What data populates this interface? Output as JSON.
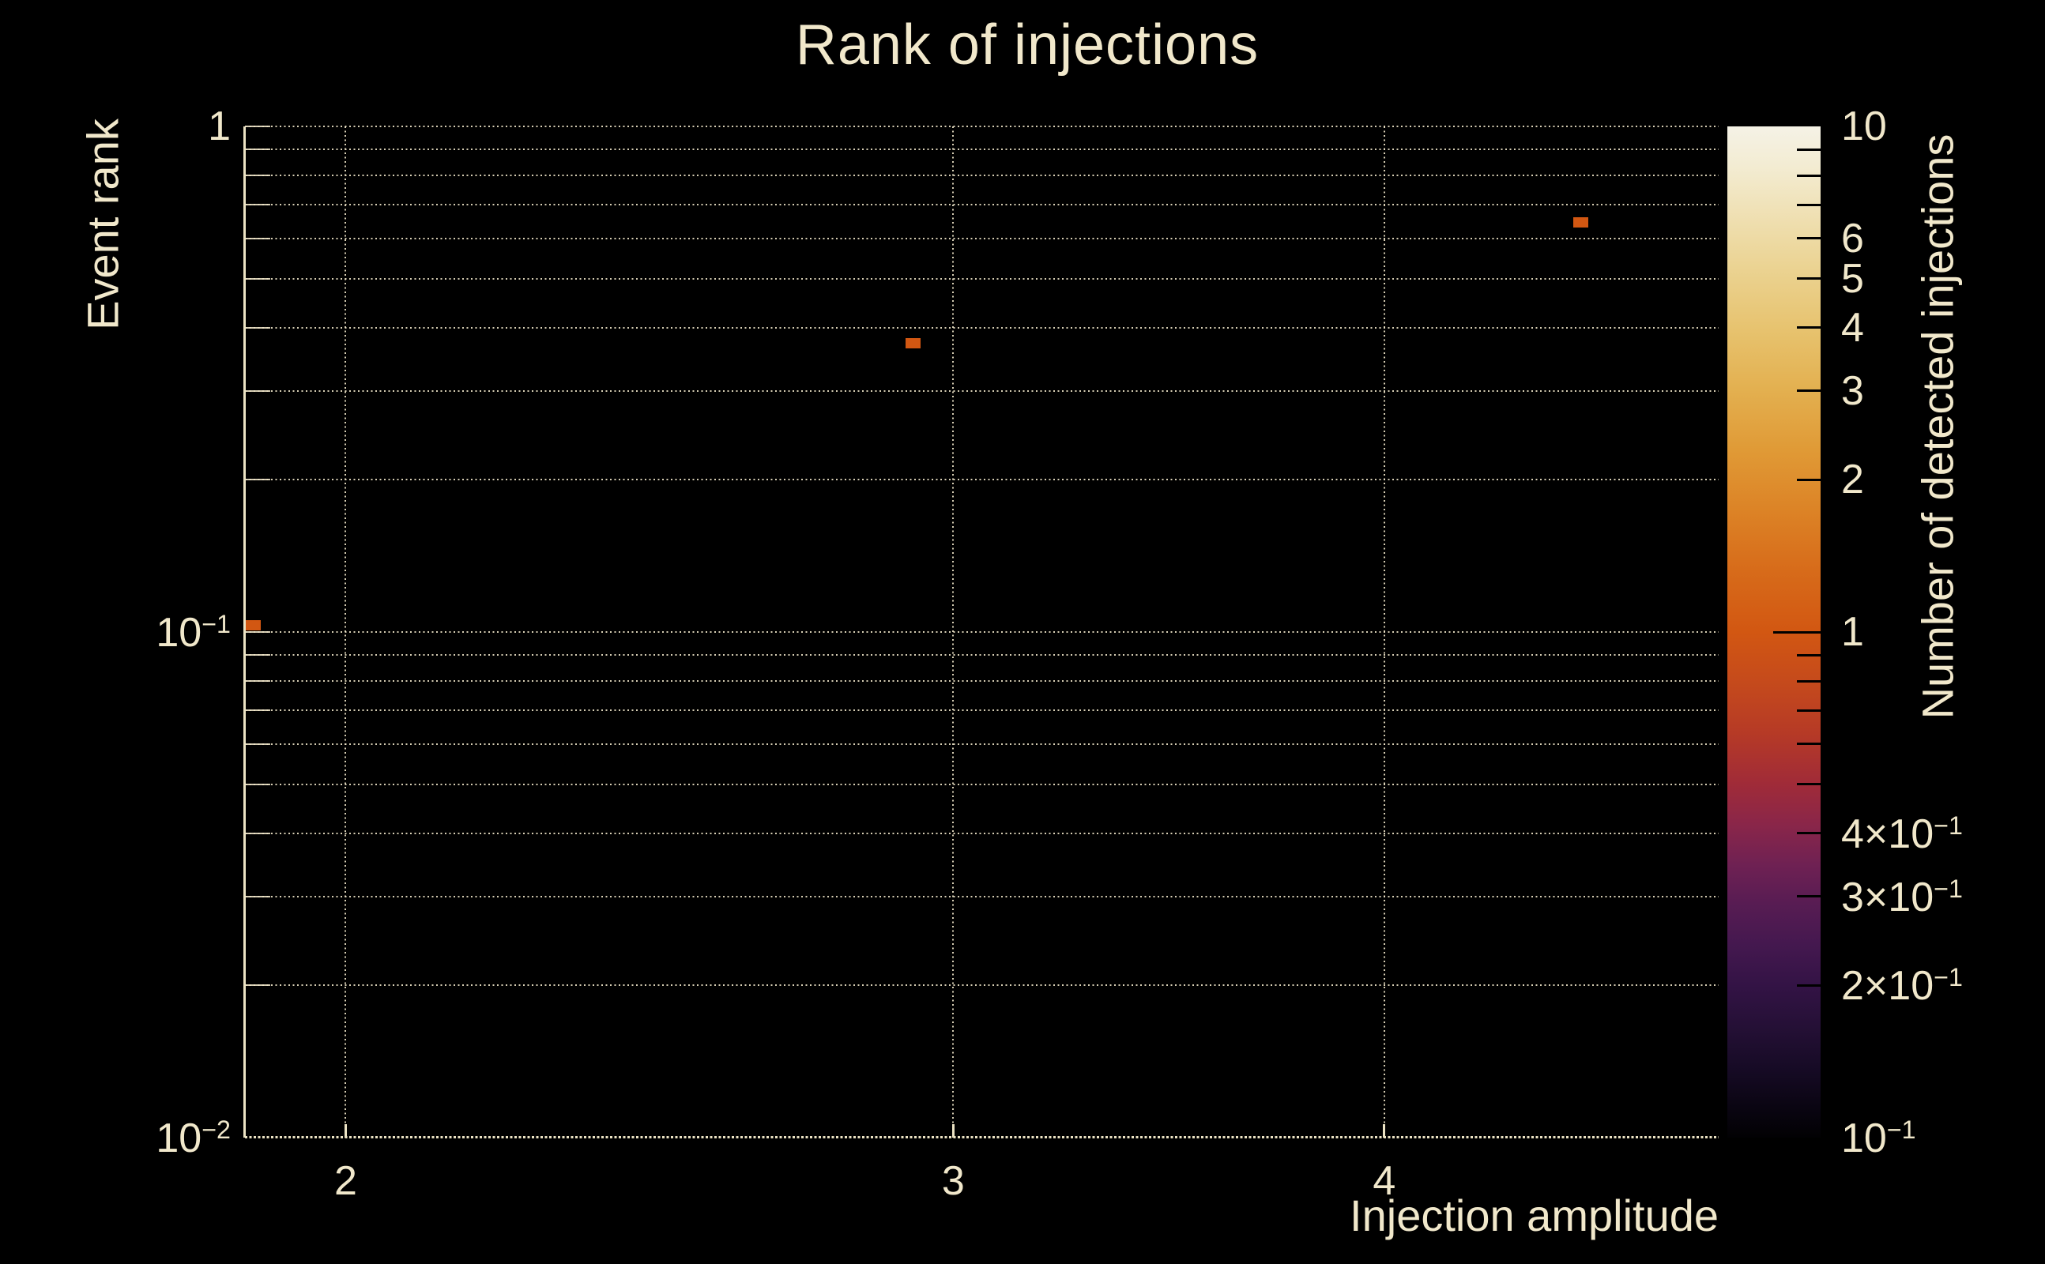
{
  "chart_data": {
    "type": "heatmap",
    "title": "Rank of injections",
    "xlabel": "Injection amplitude",
    "ylabel": "Event rank",
    "background_color": "#000000",
    "text_color": "#f1e8cb",
    "grid_color": "rgba(238,228,200,0.9)",
    "grid": "dotted, log minor lines",
    "x_axis": {
      "scale": "log",
      "min": 1.87,
      "max": 5.0,
      "ticks": [
        {
          "v": 2,
          "label": "2"
        },
        {
          "v": 3,
          "label": "3"
        },
        {
          "v": 4,
          "label": "4"
        }
      ]
    },
    "y_axis": {
      "scale": "log",
      "min": 0.01,
      "max": 1,
      "ticks": [
        {
          "v": 1,
          "label": "1"
        },
        {
          "v": 0.1,
          "label": "10",
          "sup": "−1"
        },
        {
          "v": 0.01,
          "label": "10",
          "sup": "−2"
        }
      ]
    },
    "colorbar": {
      "label": "Number of detected injections",
      "scale": "log",
      "min": 0.1,
      "max": 10,
      "ticks": [
        {
          "v": 10,
          "label": "10"
        },
        {
          "v": 6,
          "label": "6"
        },
        {
          "v": 5,
          "label": "5"
        },
        {
          "v": 4,
          "label": "4"
        },
        {
          "v": 3,
          "label": "3"
        },
        {
          "v": 2,
          "label": "2"
        },
        {
          "v": 1,
          "label": "1",
          "major": true
        },
        {
          "v": 0.4,
          "label": "4×10",
          "sup": "−1"
        },
        {
          "v": 0.3,
          "label": "3×10",
          "sup": "−1"
        },
        {
          "v": 0.2,
          "label": "2×10",
          "sup": "−1"
        },
        {
          "v": 0.1,
          "label": "10",
          "sup": "−1"
        }
      ],
      "gradient": [
        {
          "t": 0.0,
          "c": "#020103"
        },
        {
          "t": 0.03,
          "c": "#0a0512"
        },
        {
          "t": 0.07,
          "c": "#170b26"
        },
        {
          "t": 0.11,
          "c": "#251036"
        },
        {
          "t": 0.15,
          "c": "#331345"
        },
        {
          "t": 0.19,
          "c": "#44184f"
        },
        {
          "t": 0.23,
          "c": "#571c53"
        },
        {
          "t": 0.27,
          "c": "#6f2153"
        },
        {
          "t": 0.31,
          "c": "#8a2649"
        },
        {
          "t": 0.35,
          "c": "#a02b38"
        },
        {
          "t": 0.4,
          "c": "#b63a26"
        },
        {
          "t": 0.45,
          "c": "#c54a1c"
        },
        {
          "t": 0.5,
          "c": "#d25712"
        },
        {
          "t": 0.56,
          "c": "#d76b1a"
        },
        {
          "t": 0.62,
          "c": "#dc8326"
        },
        {
          "t": 0.68,
          "c": "#e09a36"
        },
        {
          "t": 0.74,
          "c": "#e3b050"
        },
        {
          "t": 0.8,
          "c": "#e7c36f"
        },
        {
          "t": 0.86,
          "c": "#ebd392"
        },
        {
          "t": 0.92,
          "c": "#f0e2b8"
        },
        {
          "t": 0.96,
          "c": "#f3ecd2"
        },
        {
          "t": 1.0,
          "c": "#f5f2e6"
        }
      ]
    },
    "points": [
      {
        "x": 1.88,
        "y": 0.103,
        "count": 1
      },
      {
        "x": 2.92,
        "y": 0.372,
        "count": 1
      },
      {
        "x": 4.56,
        "y": 0.647,
        "count": 1
      }
    ],
    "count_1_color": "#d25712"
  }
}
